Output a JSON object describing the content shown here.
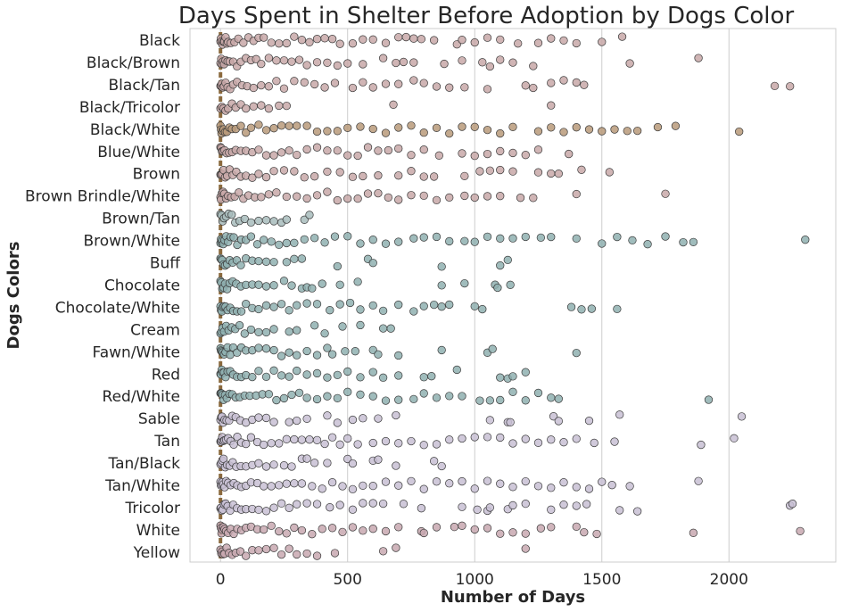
{
  "chart_data": {
    "type": "scatter",
    "title": "Days Spent in Shelter Before Adoption by Dogs Color",
    "xlabel": "Number of Days",
    "ylabel": "Dogs Colors",
    "xlim": [
      -120,
      2420
    ],
    "xticks": [
      0,
      500,
      1000,
      1500,
      2000
    ],
    "grid": true,
    "legend": "none",
    "median_line_color": "#8b6a3e",
    "categories": [
      {
        "name": "Black",
        "color": "#c8a8a8",
        "points": [
          0,
          2,
          5,
          8,
          12,
          15,
          20,
          25,
          30,
          40,
          55,
          70,
          90,
          110,
          130,
          150,
          170,
          200,
          230,
          260,
          290,
          320,
          350,
          380,
          410,
          440,
          470,
          520,
          560,
          600,
          650,
          700,
          730,
          760,
          790,
          840,
          930,
          950,
          1000,
          1050,
          1100,
          1170,
          1250,
          1300,
          1350,
          1400,
          1500,
          1580
        ]
      },
      {
        "name": "Black/Brown",
        "color": "#c8a8a8",
        "points": [
          0,
          3,
          6,
          10,
          14,
          20,
          28,
          36,
          50,
          65,
          80,
          100,
          120,
          140,
          160,
          190,
          220,
          250,
          280,
          310,
          340,
          380,
          420,
          460,
          500,
          560,
          640,
          690,
          720,
          760,
          880,
          950,
          1030,
          1060,
          1100,
          1150,
          1230,
          1610,
          1880
        ]
      },
      {
        "name": "Black/Tan",
        "color": "#c8a8a8",
        "points": [
          0,
          2,
          5,
          9,
          14,
          20,
          28,
          38,
          50,
          65,
          85,
          105,
          130,
          160,
          190,
          220,
          250,
          290,
          330,
          370,
          410,
          450,
          520,
          560,
          600,
          650,
          700,
          760,
          800,
          850,
          900,
          960,
          1050,
          1200,
          1230,
          1300,
          1350,
          1400,
          1430,
          2180,
          2240
        ]
      },
      {
        "name": "Black/Tricolor",
        "color": "#c8a8a8",
        "points": [
          0,
          5,
          12,
          20,
          30,
          45,
          60,
          80,
          100,
          130,
          160,
          190,
          230,
          260,
          680,
          1300
        ]
      },
      {
        "name": "Black/White",
        "color": "#b89a7a",
        "points": [
          0,
          2,
          4,
          8,
          12,
          18,
          25,
          35,
          45,
          60,
          80,
          100,
          120,
          150,
          180,
          210,
          240,
          270,
          300,
          340,
          380,
          420,
          460,
          500,
          550,
          600,
          650,
          700,
          750,
          800,
          850,
          900,
          950,
          1000,
          1050,
          1100,
          1150,
          1250,
          1300,
          1350,
          1400,
          1450,
          1500,
          1550,
          1600,
          1640,
          1720,
          1790,
          2040
        ]
      },
      {
        "name": "Blue/White",
        "color": "#c8a8a8",
        "points": [
          0,
          3,
          6,
          10,
          16,
          24,
          34,
          46,
          60,
          80,
          100,
          125,
          150,
          180,
          210,
          240,
          270,
          300,
          340,
          380,
          420,
          460,
          500,
          540,
          580,
          620,
          660,
          700,
          750,
          800,
          860,
          950,
          1000,
          1050,
          1100,
          1150,
          1200,
          1250,
          1370
        ]
      },
      {
        "name": "Brown",
        "color": "#c8a8a8",
        "points": [
          0,
          3,
          7,
          12,
          18,
          26,
          36,
          48,
          62,
          80,
          100,
          125,
          150,
          180,
          210,
          250,
          290,
          330,
          370,
          420,
          470,
          520,
          560,
          620,
          700,
          750,
          800,
          840,
          960,
          1020,
          1060,
          1100,
          1150,
          1250,
          1300,
          1330,
          1420,
          1530
        ]
      },
      {
        "name": "Brown Brindle/White",
        "color": "#c8a8a8",
        "points": [
          0,
          2,
          6,
          10,
          15,
          22,
          30,
          42,
          56,
          72,
          90,
          110,
          135,
          160,
          190,
          220,
          260,
          300,
          340,
          380,
          420,
          460,
          500,
          540,
          580,
          620,
          660,
          700,
          750,
          800,
          850,
          900,
          960,
          1000,
          1050,
          1100,
          1180,
          1230,
          1400,
          1750
        ]
      },
      {
        "name": "Brown/Tan",
        "color": "#a8bcbc",
        "points": [
          0,
          4,
          8,
          14,
          22,
          32,
          44,
          58,
          75,
          95,
          120,
          150,
          180,
          210,
          240,
          260,
          330,
          350
        ]
      },
      {
        "name": "Brown/White",
        "color": "#8fb0b0",
        "points": [
          0,
          2,
          4,
          7,
          11,
          16,
          22,
          30,
          40,
          52,
          66,
          82,
          100,
          120,
          145,
          170,
          200,
          230,
          260,
          290,
          330,
          370,
          410,
          450,
          500,
          550,
          600,
          650,
          700,
          760,
          800,
          850,
          900,
          960,
          1000,
          1050,
          1100,
          1150,
          1200,
          1260,
          1300,
          1400,
          1500,
          1560,
          1620,
          1680,
          1750,
          1820,
          1860,
          2300
        ]
      },
      {
        "name": "Buff",
        "color": "#8fb0b0",
        "points": [
          0,
          3,
          7,
          12,
          18,
          26,
          36,
          48,
          64,
          80,
          100,
          125,
          150,
          180,
          210,
          260,
          290,
          320,
          460,
          580,
          600,
          870,
          1100,
          1130
        ]
      },
      {
        "name": "Chocolate",
        "color": "#8fb0b0",
        "points": [
          0,
          3,
          7,
          12,
          18,
          26,
          36,
          48,
          62,
          80,
          100,
          125,
          150,
          180,
          210,
          250,
          280,
          320,
          340,
          360,
          400,
          470,
          540,
          870,
          960,
          1080,
          1090,
          1140
        ]
      },
      {
        "name": "Chocolate/White",
        "color": "#8fb0b0",
        "points": [
          0,
          2,
          5,
          9,
          14,
          20,
          28,
          38,
          50,
          65,
          82,
          100,
          125,
          150,
          180,
          210,
          240,
          270,
          300,
          340,
          380,
          430,
          470,
          510,
          550,
          600,
          640,
          700,
          760,
          800,
          840,
          870,
          900,
          1000,
          1030,
          1380,
          1420,
          1460,
          1560
        ]
      },
      {
        "name": "Cream",
        "color": "#8fb0b0",
        "points": [
          0,
          4,
          8,
          14,
          22,
          32,
          44,
          58,
          75,
          95,
          120,
          150,
          180,
          210,
          270,
          300,
          370,
          410,
          480,
          550,
          640,
          670
        ]
      },
      {
        "name": "Fawn/White",
        "color": "#8fb0b0",
        "points": [
          0,
          2,
          5,
          9,
          14,
          20,
          28,
          38,
          50,
          65,
          82,
          100,
          125,
          150,
          180,
          210,
          240,
          270,
          300,
          340,
          380,
          420,
          440,
          490,
          530,
          600,
          620,
          700,
          870,
          1050,
          1070,
          1400
        ]
      },
      {
        "name": "Red",
        "color": "#8fb0b0",
        "points": [
          0,
          2,
          5,
          9,
          14,
          20,
          28,
          38,
          50,
          65,
          82,
          100,
          125,
          150,
          180,
          210,
          240,
          270,
          300,
          340,
          380,
          420,
          460,
          500,
          550,
          600,
          640,
          700,
          800,
          830,
          930,
          1100,
          1130,
          1150,
          1200
        ]
      },
      {
        "name": "Red/White",
        "color": "#8fb0b0",
        "points": [
          0,
          2,
          4,
          8,
          12,
          18,
          25,
          35,
          46,
          60,
          76,
          95,
          115,
          140,
          165,
          190,
          220,
          250,
          280,
          310,
          340,
          380,
          420,
          460,
          500,
          550,
          600,
          650,
          700,
          760,
          800,
          850,
          900,
          950,
          1020,
          1060,
          1100,
          1150,
          1200,
          1250,
          1300,
          1330,
          1920
        ]
      },
      {
        "name": "Sable",
        "color": "#c8c0d4",
        "points": [
          0,
          3,
          6,
          10,
          16,
          24,
          34,
          46,
          60,
          78,
          100,
          125,
          150,
          180,
          210,
          270,
          300,
          340,
          420,
          460,
          520,
          560,
          620,
          690,
          1060,
          1130,
          1140,
          1310,
          1330,
          1450,
          1570,
          2050
        ]
      },
      {
        "name": "Tan",
        "color": "#c8c0d4",
        "points": [
          0,
          2,
          4,
          7,
          11,
          16,
          22,
          30,
          40,
          52,
          66,
          82,
          100,
          120,
          145,
          170,
          200,
          230,
          260,
          290,
          320,
          350,
          380,
          410,
          440,
          470,
          500,
          540,
          600,
          650,
          700,
          750,
          800,
          850,
          900,
          950,
          1000,
          1050,
          1100,
          1150,
          1200,
          1250,
          1300,
          1350,
          1400,
          1470,
          1550,
          1890,
          2020
        ]
      },
      {
        "name": "Tan/Black",
        "color": "#c8c0d4",
        "points": [
          0,
          3,
          7,
          12,
          18,
          26,
          36,
          48,
          62,
          80,
          100,
          125,
          150,
          180,
          210,
          250,
          280,
          320,
          340,
          370,
          420,
          500,
          520,
          600,
          620,
          690,
          840,
          870
        ]
      },
      {
        "name": "Tan/White",
        "color": "#c8c0d4",
        "points": [
          0,
          2,
          4,
          7,
          11,
          16,
          22,
          30,
          40,
          52,
          66,
          82,
          100,
          120,
          145,
          170,
          200,
          230,
          260,
          290,
          320,
          360,
          400,
          440,
          480,
          520,
          560,
          600,
          650,
          700,
          750,
          800,
          850,
          900,
          950,
          1000,
          1050,
          1100,
          1150,
          1200,
          1250,
          1300,
          1350,
          1400,
          1450,
          1500,
          1540,
          1610,
          1880
        ]
      },
      {
        "name": "Tricolor",
        "color": "#c8c0d4",
        "points": [
          0,
          2,
          5,
          9,
          14,
          20,
          28,
          38,
          50,
          65,
          82,
          100,
          125,
          150,
          180,
          210,
          240,
          270,
          300,
          340,
          380,
          430,
          470,
          520,
          560,
          600,
          640,
          720,
          790,
          950,
          1010,
          1050,
          1060,
          1130,
          1150,
          1200,
          1300,
          1350,
          1400,
          1440,
          1570,
          1640,
          2240,
          2250
        ]
      },
      {
        "name": "White",
        "color": "#c8a8b0",
        "points": [
          0,
          2,
          4,
          7,
          11,
          16,
          22,
          30,
          40,
          52,
          66,
          82,
          100,
          120,
          145,
          170,
          200,
          230,
          260,
          290,
          320,
          360,
          400,
          440,
          480,
          520,
          560,
          600,
          650,
          700,
          790,
          800,
          850,
          920,
          950,
          1000,
          1050,
          1100,
          1150,
          1200,
          1260,
          1300,
          1400,
          1430,
          1480,
          1860,
          2280
        ]
      },
      {
        "name": "Yellow",
        "color": "#c8a8b0",
        "points": [
          0,
          3,
          6,
          10,
          16,
          24,
          34,
          46,
          60,
          78,
          100,
          125,
          150,
          180,
          210,
          240,
          270,
          300,
          340,
          380,
          450,
          640,
          690,
          1200
        ]
      }
    ]
  }
}
